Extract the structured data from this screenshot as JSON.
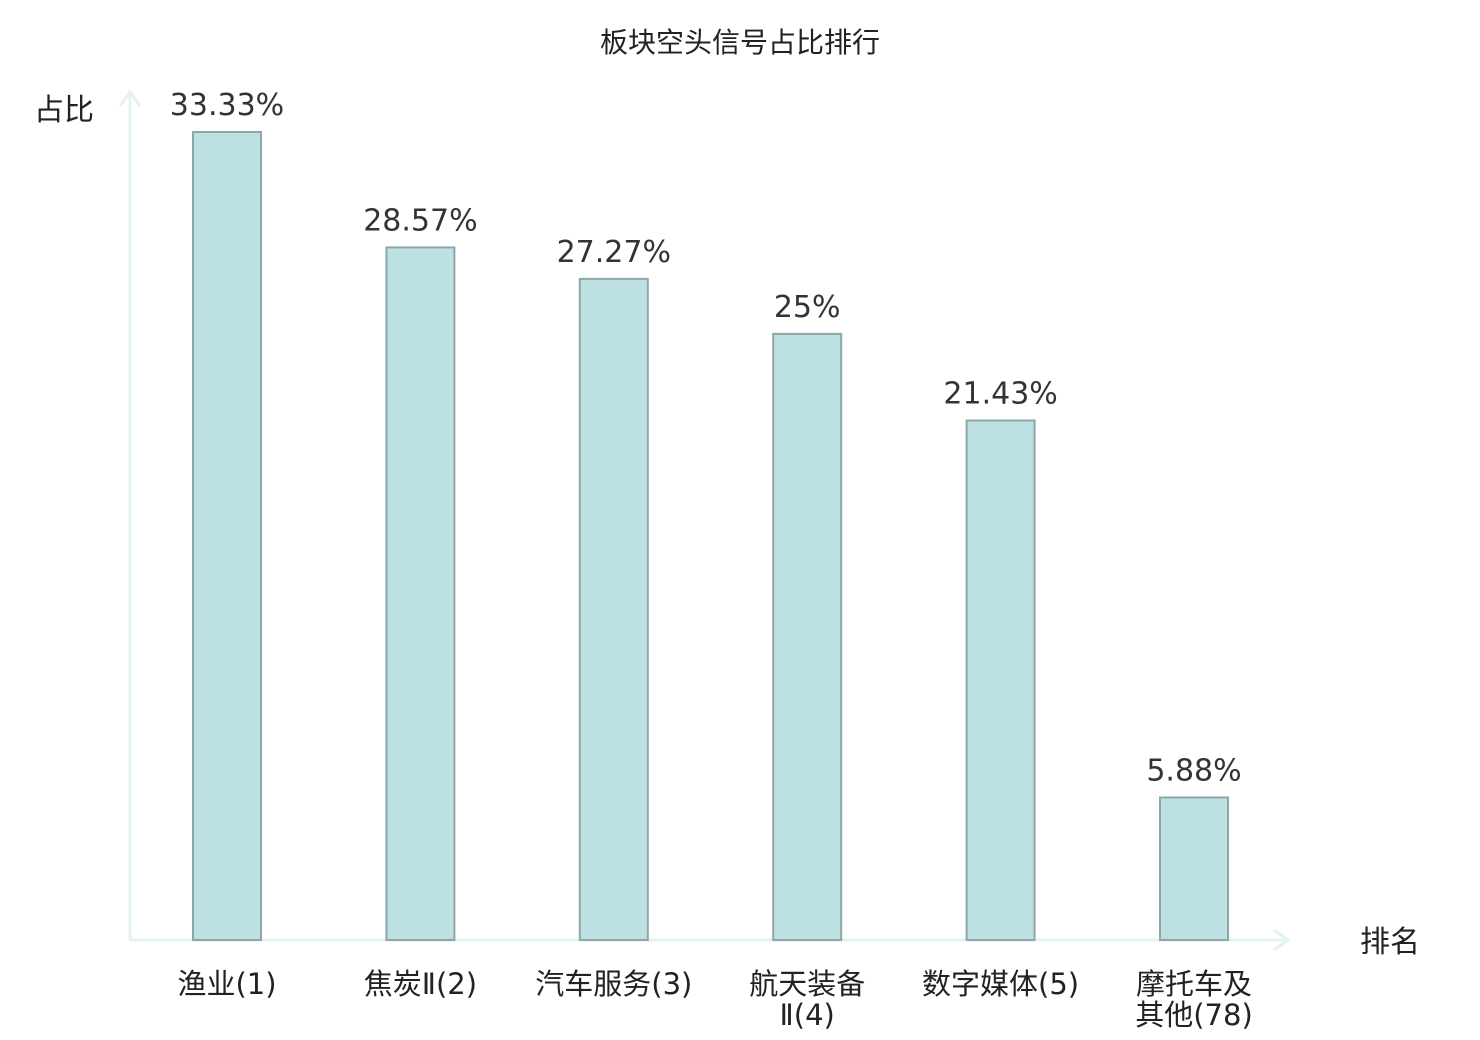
{
  "chart_data": {
    "type": "bar",
    "title": "板块空头信号占比排行",
    "ylabel": "占比",
    "xlabel": "排名",
    "ylim": [
      0,
      35
    ],
    "grid": false,
    "categories": [
      [
        "渔业(1)"
      ],
      [
        "焦炭Ⅱ(2)"
      ],
      [
        "汽车服务(3)"
      ],
      [
        "航天装备",
        "Ⅱ(4)"
      ],
      [
        "数字媒体(5)"
      ],
      [
        "摩托车及",
        "其他(78)"
      ]
    ],
    "values": [
      33.33,
      28.57,
      27.27,
      25,
      21.43,
      5.88
    ],
    "value_labels": [
      "33.33%",
      "28.57%",
      "27.27%",
      "25%",
      "21.43%",
      "5.88%"
    ],
    "highlight_index": 5,
    "colors": {
      "bar_fill": "#bde0e3",
      "bar_stroke": "#8fa6a8",
      "axis": "#e2f3f2",
      "text": "#222222",
      "value_text": "#333333",
      "highlight_text": "#e8141a"
    }
  }
}
